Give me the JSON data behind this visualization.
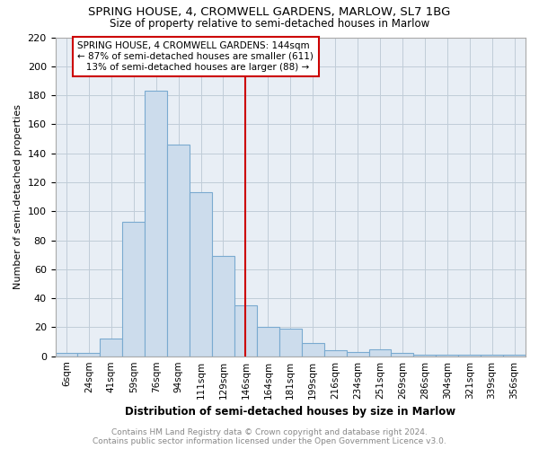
{
  "title": "SPRING HOUSE, 4, CROMWELL GARDENS, MARLOW, SL7 1BG",
  "subtitle": "Size of property relative to semi-detached houses in Marlow",
  "xlabel": "Distribution of semi-detached houses by size in Marlow",
  "ylabel": "Number of semi-detached properties",
  "categories": [
    "6sqm",
    "24sqm",
    "41sqm",
    "59sqm",
    "76sqm",
    "94sqm",
    "111sqm",
    "129sqm",
    "146sqm",
    "164sqm",
    "181sqm",
    "199sqm",
    "216sqm",
    "234sqm",
    "251sqm",
    "269sqm",
    "286sqm",
    "304sqm",
    "321sqm",
    "339sqm",
    "356sqm"
  ],
  "values": [
    2,
    2,
    12,
    93,
    183,
    146,
    113,
    69,
    35,
    20,
    19,
    9,
    4,
    3,
    5,
    2,
    1,
    1,
    1,
    1,
    1
  ],
  "bar_color": "#ccdcec",
  "bar_edge_color": "#7aaad0",
  "vline_bar_index": 8,
  "property_label": "SPRING HOUSE, 4 CROMWELL GARDENS: 144sqm",
  "pct_smaller": 87,
  "count_smaller": 611,
  "pct_larger": 13,
  "count_larger": 88,
  "annotation_box_color": "#cc0000",
  "vline_color": "#cc0000",
  "background_color": "#ffffff",
  "plot_bg_color": "#e8eef5",
  "grid_color": "#c0ccd8",
  "footer_text": "Contains HM Land Registry data © Crown copyright and database right 2024.\nContains public sector information licensed under the Open Government Licence v3.0.",
  "ylim": [
    0,
    220
  ],
  "yticks": [
    0,
    20,
    40,
    60,
    80,
    100,
    120,
    140,
    160,
    180,
    200,
    220
  ]
}
